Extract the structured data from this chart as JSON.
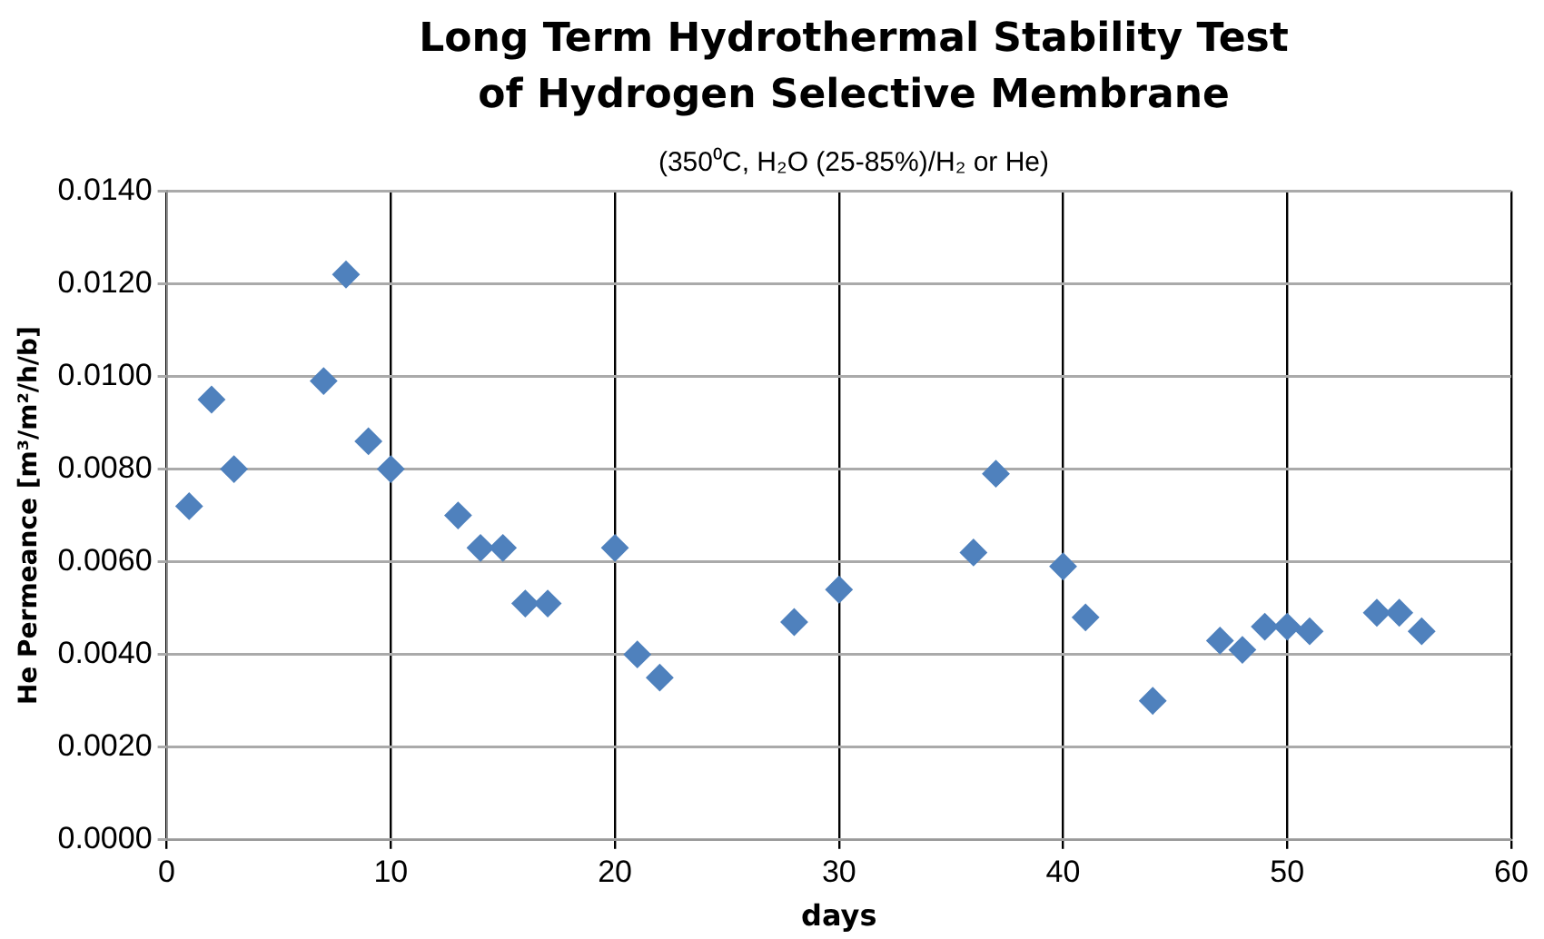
{
  "chart_data": {
    "type": "scatter",
    "title": "Long Term Hydrothermal Stability Test of Hydrogen Selective Membrane",
    "subtitle": "(350⁰C, H₂O (25-85%)/H₂ or He)",
    "xlabel": "days",
    "ylabel": "He Permeance [m³/m²/h/b]",
    "x": [
      1,
      2,
      3,
      7,
      8,
      9,
      10,
      13,
      14,
      15,
      16,
      17,
      20,
      21,
      22,
      28,
      30,
      36,
      37,
      40,
      41,
      44,
      47,
      48,
      49,
      50,
      51,
      54,
      55,
      56
    ],
    "series": [
      {
        "color": "#4f81bd",
        "values": [
          0.0072,
          0.0095,
          0.008,
          0.0099,
          0.0122,
          0.0086,
          0.008,
          0.007,
          0.0063,
          0.0063,
          0.0051,
          0.0051,
          0.0063,
          0.004,
          0.0035,
          0.0047,
          0.0054,
          0.0062,
          0.0079,
          0.0059,
          0.0048,
          0.003,
          0.0043,
          0.0041,
          0.0046,
          0.0046,
          0.0045,
          0.0049,
          0.0049,
          0.0045
        ]
      }
    ],
    "xlim": [
      0,
      60
    ],
    "xticks": [
      0,
      10,
      20,
      30,
      40,
      50,
      60
    ],
    "ylim": [
      0,
      0.014
    ],
    "yticks": [
      {
        "value": 0,
        "label": "0.0000"
      },
      {
        "value": 0.002,
        "label": "0.0020"
      },
      {
        "value": 0.004,
        "label": "0.0040"
      },
      {
        "value": 0.006,
        "label": "0.0060"
      },
      {
        "value": 0.008,
        "label": "0.0080"
      },
      {
        "value": 0.01,
        "label": "0.0100"
      },
      {
        "value": 0.012,
        "label": "0.0120"
      },
      {
        "value": 0.014,
        "label": "0.0140"
      }
    ],
    "grid": true,
    "legend": false,
    "marker": "diamond"
  }
}
